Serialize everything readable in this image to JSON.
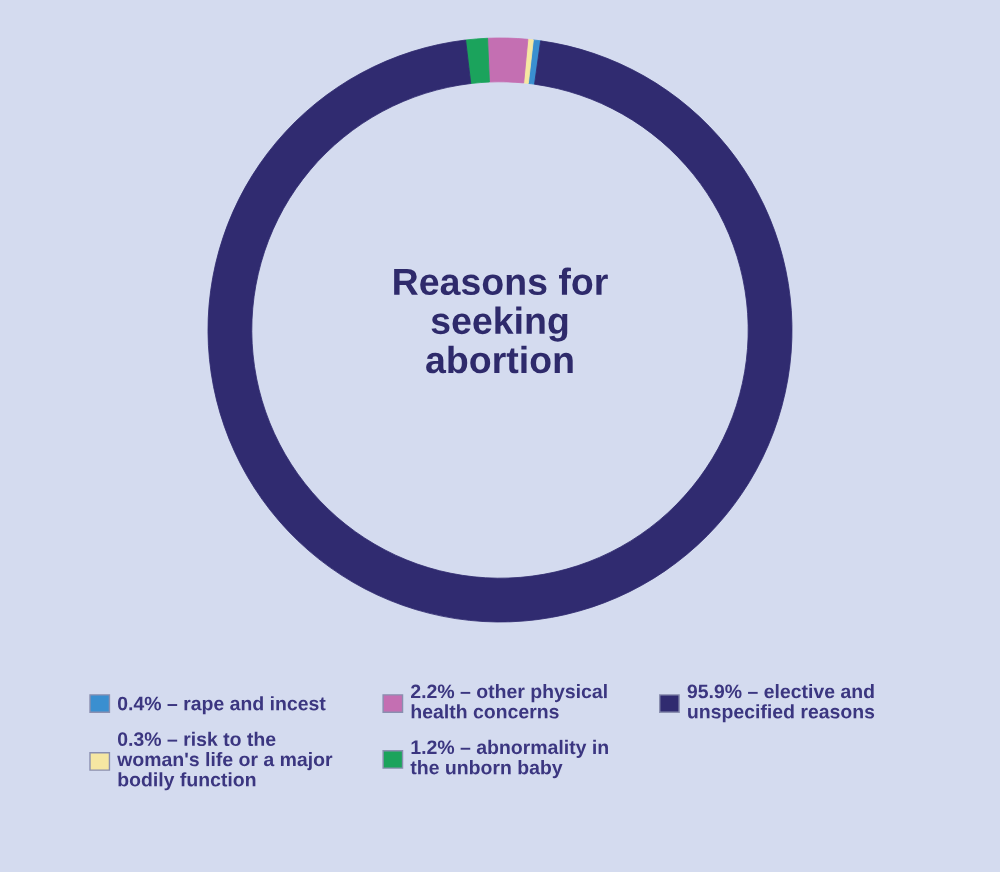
{
  "chart_data": {
    "type": "donut",
    "title": "Reasons for seeking abortion",
    "categories": [
      "0.4% – rape and incest",
      "0.3% – risk to the woman's life or a major bodily function",
      "2.2% – other physical health concerns",
      "1.2% – abnormality in the unborn baby",
      "95.9% – elective and unspecified reasons"
    ],
    "values": [
      0.4,
      0.3,
      2.2,
      1.2,
      95.9
    ],
    "colors": [
      "#3a8fd0",
      "#f6e7a2",
      "#c46fb2",
      "#1ba35c",
      "#302b70"
    ],
    "legend": "bottom"
  }
}
